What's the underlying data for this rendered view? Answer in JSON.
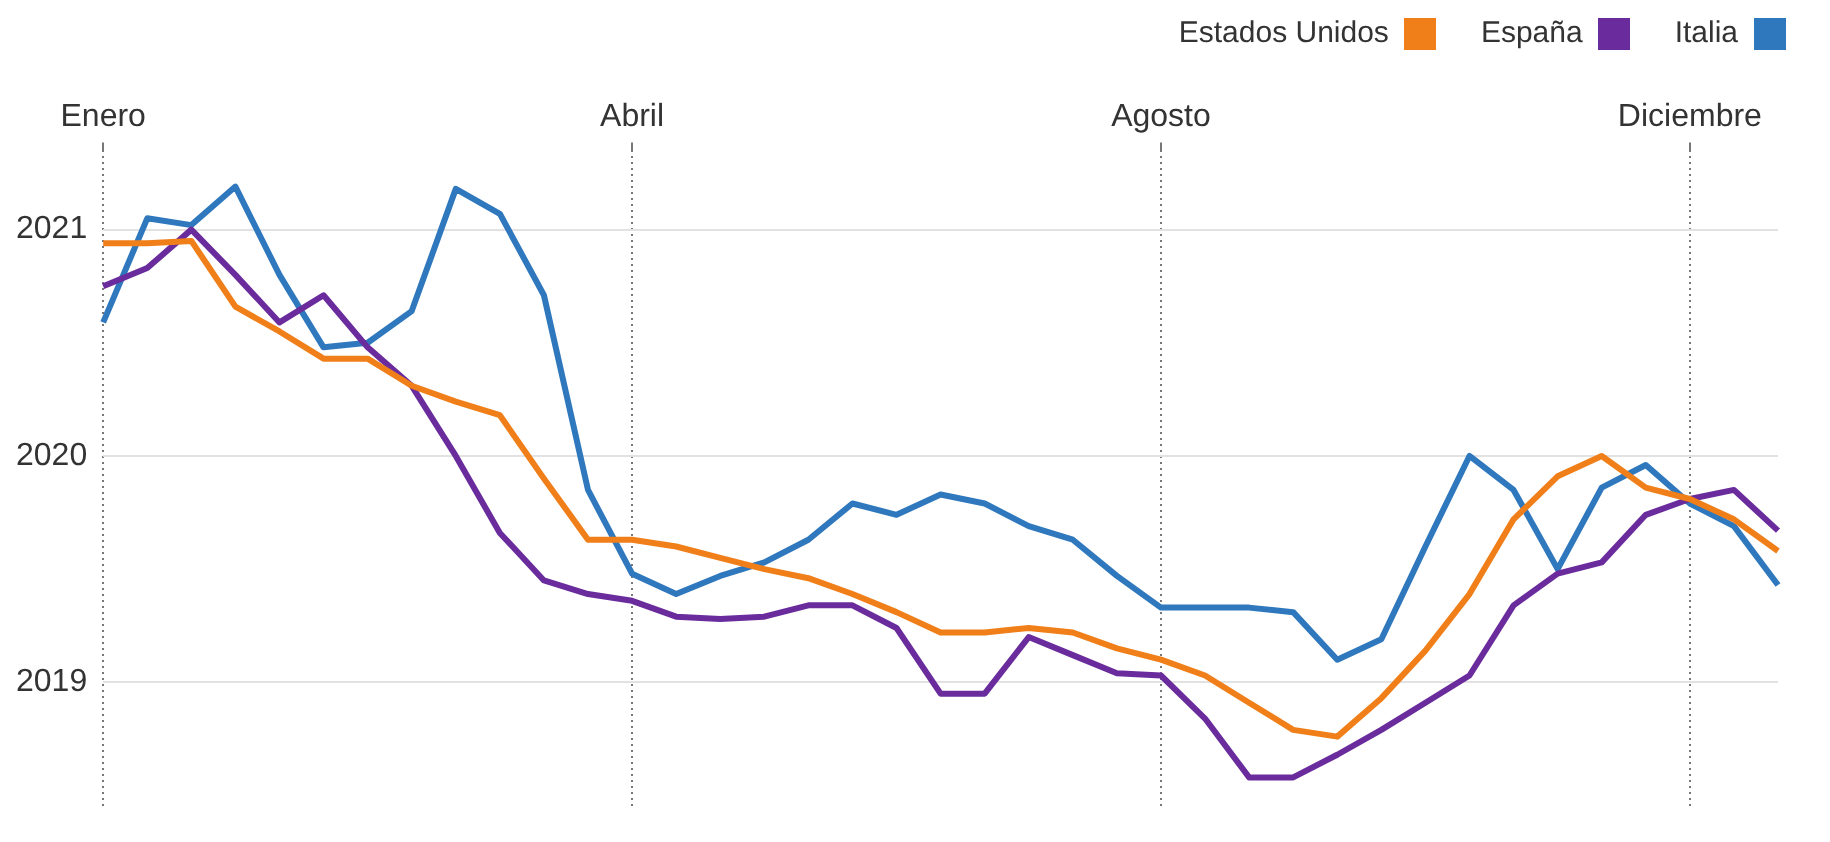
{
  "chart_data": {
    "type": "line",
    "categories": [
      "Enero",
      null,
      null,
      null,
      null,
      null,
      null,
      null,
      null,
      null,
      null,
      null,
      "Abril",
      null,
      null,
      null,
      null,
      null,
      null,
      null,
      null,
      null,
      null,
      null,
      "Agosto",
      null,
      null,
      null,
      null,
      null,
      null,
      null,
      null,
      null,
      null,
      null,
      "Diciembre",
      null,
      null
    ],
    "ylim": [
      2018.45,
      2021.35
    ],
    "yticks": [
      2019,
      2020,
      2021
    ],
    "grid": true,
    "legend": "top right",
    "marker": "none",
    "line_style": "solid",
    "series": [
      {
        "name": "Estados Unidos",
        "color": "#f07f1a",
        "values": [
          2020.94,
          2020.94,
          2020.95,
          2020.66,
          2020.55,
          2020.43,
          2020.43,
          2020.31,
          2020.24,
          2020.18,
          2019.9,
          2019.63,
          2019.63,
          2019.6,
          2019.55,
          2019.5,
          2019.46,
          2019.39,
          2019.31,
          2019.22,
          2019.22,
          2019.24,
          2019.22,
          2019.15,
          2019.1,
          2019.03,
          2018.91,
          2018.79,
          2018.76,
          2018.93,
          2019.14,
          2019.39,
          2019.72,
          2019.91,
          2020.0,
          2019.86,
          2019.81,
          2019.72,
          2019.58
        ]
      },
      {
        "name": "España",
        "color": "#6a2c9c",
        "values": [
          2020.75,
          2020.83,
          2021.0,
          2020.8,
          2020.59,
          2020.71,
          2020.48,
          2020.31,
          2020.0,
          2019.66,
          2019.45,
          2019.39,
          2019.36,
          2019.29,
          2019.28,
          2019.29,
          2019.34,
          2019.34,
          2019.24,
          2018.95,
          2018.95,
          2019.2,
          2019.12,
          2019.04,
          2019.03,
          2018.84,
          2018.58,
          2018.58,
          2018.68,
          2018.79,
          2018.91,
          2019.03,
          2019.34,
          2019.48,
          2019.53,
          2019.74,
          2019.81,
          2019.85,
          2019.67
        ]
      },
      {
        "name": "Italia",
        "color": "#2f78bd",
        "values": [
          2020.59,
          2021.05,
          2021.02,
          2021.19,
          2020.8,
          2020.48,
          2020.5,
          2020.64,
          2021.18,
          2021.07,
          2020.71,
          2019.85,
          2019.48,
          2019.39,
          2019.47,
          2019.53,
          2019.63,
          2019.79,
          2019.74,
          2019.83,
          2019.79,
          2019.69,
          2019.63,
          2019.47,
          2019.33,
          2019.33,
          2019.33,
          2019.31,
          2019.1,
          2019.19,
          2019.6,
          2020.0,
          2019.85,
          2019.5,
          2019.86,
          2019.96,
          2019.79,
          2019.69,
          2019.43
        ]
      }
    ]
  }
}
